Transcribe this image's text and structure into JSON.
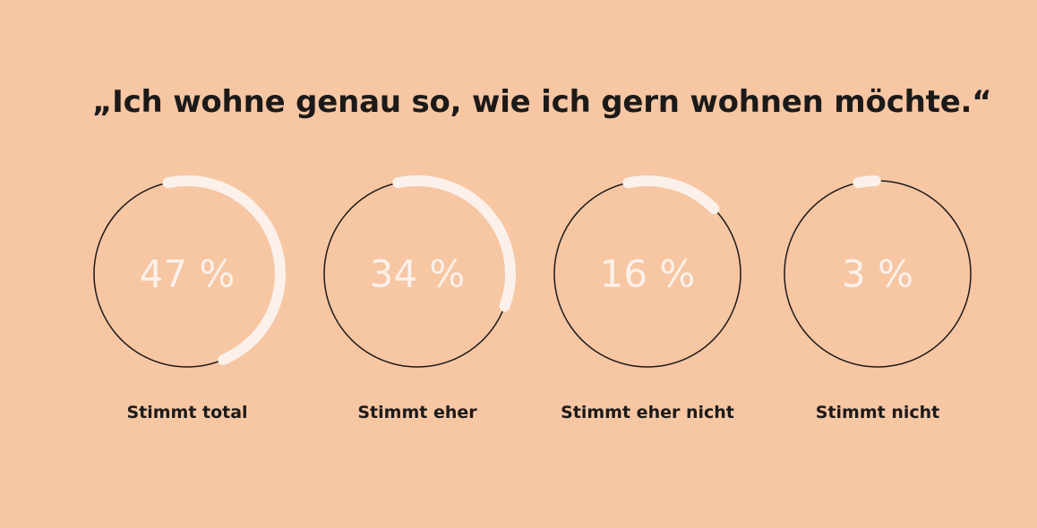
{
  "title": "„Ich wohne genau so, wie ich gern wohnen möchte.“",
  "colors": {
    "background": "#f7c6a3",
    "ring": "#1c1a19",
    "arc": "#fbf1ea",
    "text": "#1c1a19"
  },
  "chart_data": {
    "type": "donut-progress",
    "unit": "%",
    "categories": [
      "Stimmt total",
      "Stimmt eher",
      "Stimmt eher nicht",
      "Stimmt nicht"
    ],
    "values": [
      47,
      34,
      16,
      3
    ],
    "value_labels": [
      "47 %",
      "34 %",
      "16 %",
      "3 %"
    ],
    "ylim": [
      0,
      100
    ]
  }
}
